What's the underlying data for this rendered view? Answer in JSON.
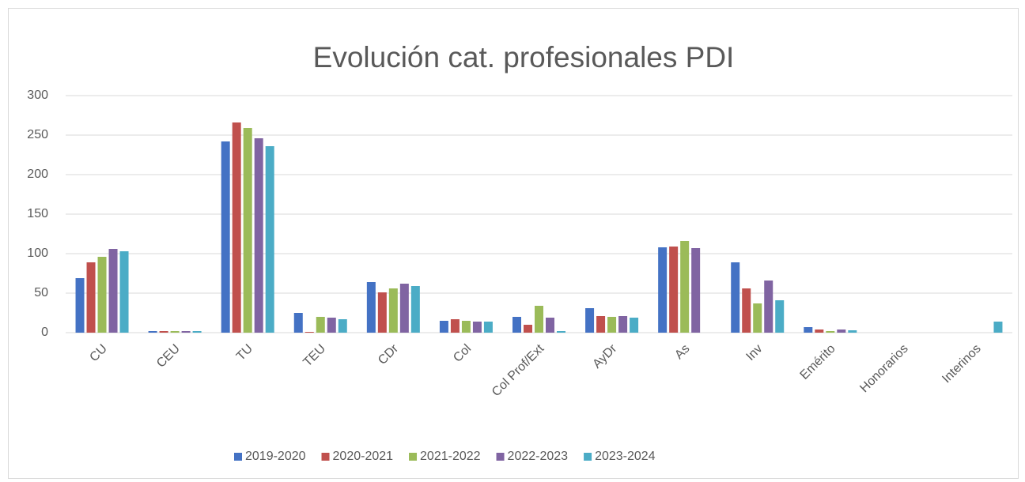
{
  "chart_data": {
    "type": "bar",
    "title": "Evolución cat. profesionales PDI",
    "categories": [
      "CU",
      "CEU",
      "TU",
      "TEU",
      "CDr",
      "Col",
      "Col Prof/Ext",
      "AyDr",
      "As",
      "Inv",
      "Emérito",
      "Honorarios",
      "Interinos"
    ],
    "series": [
      {
        "name": "2019-2020",
        "color": "#4472c4",
        "values": [
          69,
          2,
          242,
          25,
          64,
          15,
          20,
          31,
          108,
          89,
          7,
          0,
          0
        ]
      },
      {
        "name": "2020-2021",
        "color": "#c0504d",
        "values": [
          89,
          2,
          266,
          1,
          51,
          17,
          10,
          21,
          109,
          56,
          4,
          0,
          0
        ]
      },
      {
        "name": "2021-2022",
        "color": "#9bbb59",
        "values": [
          96,
          2,
          259,
          20,
          56,
          15,
          34,
          20,
          116,
          37,
          2,
          0,
          0
        ]
      },
      {
        "name": "2022-2023",
        "color": "#8064a2",
        "values": [
          106,
          2,
          246,
          19,
          62,
          14,
          19,
          21,
          107,
          66,
          4,
          0,
          0
        ]
      },
      {
        "name": "2023-2024",
        "color": "#4bacc6",
        "values": [
          103,
          2,
          236,
          17,
          59,
          14,
          2,
          19,
          0,
          41,
          3,
          0,
          14
        ]
      }
    ],
    "ylim": [
      0,
      300
    ],
    "yticks": [
      0,
      50,
      100,
      150,
      200,
      250,
      300
    ],
    "grid": true,
    "legend": "bottom"
  }
}
